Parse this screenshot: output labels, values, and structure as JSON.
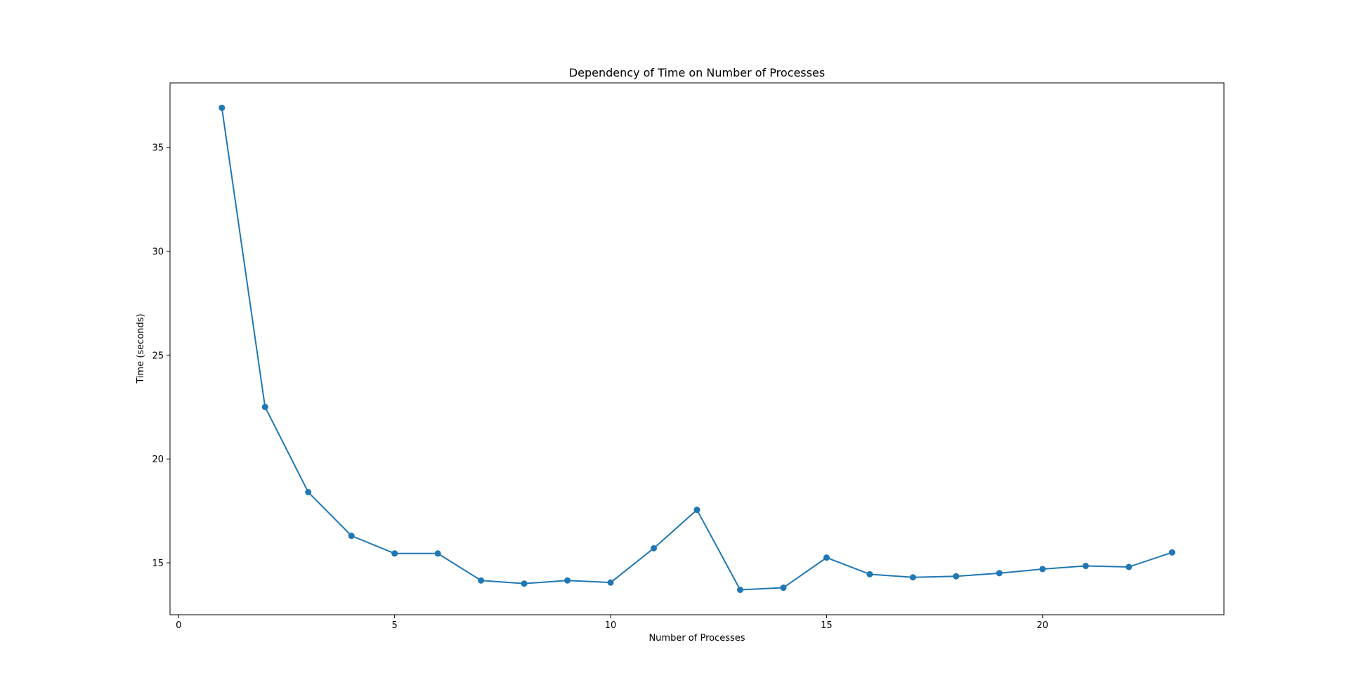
{
  "chart_data": {
    "type": "line",
    "title": "Dependency of Time on Number of Processes",
    "xlabel": "Number of Processes",
    "ylabel": "Time (seconds)",
    "xlim": [
      -0.2,
      24.2
    ],
    "ylim": [
      12.5,
      38.1
    ],
    "xticks": [
      0,
      5,
      10,
      15,
      20
    ],
    "yticks": [
      15,
      20,
      25,
      30,
      35
    ],
    "grid": false,
    "marker": "circle",
    "series": [
      {
        "color": "#1f77b4",
        "x": [
          1,
          2,
          3,
          4,
          5,
          6,
          7,
          8,
          9,
          10,
          11,
          12,
          13,
          14,
          15,
          16,
          17,
          18,
          19,
          20,
          21,
          22,
          23
        ],
        "y": [
          36.9,
          22.5,
          18.4,
          16.3,
          15.45,
          15.45,
          14.15,
          14.0,
          14.15,
          14.05,
          15.7,
          17.55,
          13.7,
          13.8,
          15.25,
          14.45,
          14.3,
          14.35,
          14.5,
          14.7,
          14.85,
          14.8,
          15.5
        ]
      }
    ]
  }
}
